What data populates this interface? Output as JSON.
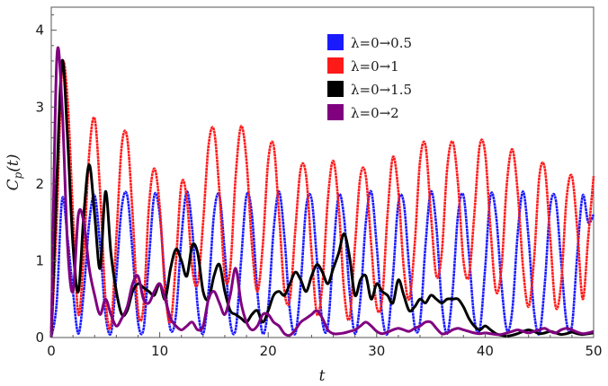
{
  "chart_data": {
    "type": "line",
    "title": "",
    "xlabel": "t",
    "ylabel_main": "C",
    "ylabel_sub": "p",
    "ylabel_arg": "(t)",
    "xlim": [
      0,
      50
    ],
    "ylim": [
      0,
      4.3
    ],
    "x_ticks": [
      "0",
      "10",
      "20",
      "30",
      "40",
      "50"
    ],
    "y_ticks": [
      "0",
      "1",
      "2",
      "3",
      "4"
    ],
    "grid": false,
    "legend_position": "top-right",
    "series": [
      {
        "name": "λ=0→0.5",
        "color": "#1a1aff",
        "x": [
          0,
          0.5,
          1,
          1.5,
          2,
          2.5,
          3,
          3.5,
          4,
          4.5,
          5,
          5.5,
          6,
          6.5,
          7,
          7.5,
          8,
          8.5,
          9,
          9.5,
          10,
          10.5,
          11,
          11.5,
          12,
          12.5,
          13,
          13.5,
          14,
          14.5,
          15,
          15.5,
          16,
          16.5,
          17,
          17.5,
          18,
          18.5,
          19,
          19.5,
          20,
          20.5,
          21,
          21.5,
          22,
          22.5,
          23,
          23.5,
          24,
          24.5,
          25,
          25.5,
          26,
          26.5,
          27,
          27.5,
          28,
          28.5,
          29,
          29.5,
          30,
          30.5,
          31,
          31.5,
          32,
          32.5,
          33,
          33.5,
          34,
          34.5,
          35,
          35.5,
          36,
          36.5,
          37,
          37.5,
          38,
          38.5,
          39,
          39.5,
          40,
          40.5,
          41,
          41.5,
          42,
          42.5,
          43,
          43.5,
          44,
          44.5,
          45,
          45.5,
          46,
          46.5,
          47,
          47.5,
          48,
          48.5,
          49,
          49.5,
          50
        ],
        "y": [
          0,
          0.45,
          1.8,
          1.3,
          0.6,
          0.05,
          0.6,
          1.5,
          1.85,
          1.2,
          0.3,
          0.05,
          0.8,
          1.7,
          1.85,
          1.1,
          0.2,
          0.1,
          1.0,
          1.85,
          1.6,
          0.7,
          0.1,
          0.3,
          1.3,
          1.9,
          1.4,
          0.4,
          0.05,
          0.6,
          1.6,
          1.85,
          1.1,
          0.2,
          0.1,
          1.0,
          1.85,
          1.6,
          0.6,
          0.05,
          0.4,
          1.4,
          1.9,
          1.3,
          0.35,
          0.05,
          0.7,
          1.7,
          1.8,
          1.0,
          0.2,
          0.15,
          1.1,
          1.85,
          1.55,
          0.6,
          0.05,
          0.5,
          1.5,
          1.9,
          1.2,
          0.3,
          0.05,
          0.8,
          1.75,
          1.75,
          0.9,
          0.15,
          0.2,
          1.2,
          1.9,
          1.45,
          0.45,
          0.05,
          0.6,
          1.6,
          1.85,
          1.1,
          0.25,
          0.1,
          0.9,
          1.85,
          1.6,
          0.7,
          0.1,
          0.35,
          1.35,
          1.9,
          1.3,
          0.35,
          0.05,
          0.7,
          1.7,
          1.8,
          1.0,
          0.2,
          0.15,
          1.1,
          1.85,
          1.5,
          1.6
        ]
      },
      {
        "name": "λ=0→1",
        "color": "#ff1a1a",
        "x": [
          0,
          0.5,
          1,
          1.5,
          2,
          2.5,
          3,
          3.5,
          4,
          4.5,
          5,
          5.5,
          6,
          6.5,
          7,
          7.5,
          8,
          8.5,
          9,
          9.5,
          10,
          10.5,
          11,
          11.5,
          12,
          12.5,
          13,
          13.5,
          14,
          14.5,
          15,
          15.5,
          16,
          16.5,
          17,
          17.5,
          18,
          18.5,
          19,
          19.5,
          20,
          20.5,
          21,
          21.5,
          22,
          22.5,
          23,
          23.5,
          24,
          24.5,
          25,
          25.5,
          26,
          26.5,
          27,
          27.5,
          28,
          28.5,
          29,
          29.5,
          30,
          30.5,
          31,
          31.5,
          32,
          32.5,
          33,
          33.5,
          34,
          34.5,
          35,
          35.5,
          36,
          36.5,
          37,
          37.5,
          38,
          38.5,
          39,
          39.5,
          40,
          40.5,
          41,
          41.5,
          42,
          42.5,
          43,
          43.5,
          44,
          44.5,
          45,
          45.5,
          46,
          46.5,
          47,
          47.5,
          48,
          48.5,
          49,
          49.5,
          50
        ],
        "y": [
          0,
          1.5,
          3.5,
          3.1,
          1.6,
          0.3,
          1.1,
          2.4,
          2.85,
          1.9,
          0.5,
          0.15,
          1.3,
          2.5,
          2.6,
          1.6,
          0.35,
          0.4,
          1.7,
          2.2,
          1.7,
          0.6,
          0.2,
          1.0,
          2.0,
          1.8,
          0.9,
          0.7,
          1.5,
          2.5,
          2.7,
          1.9,
          0.8,
          0.9,
          2.1,
          2.75,
          2.3,
          1.2,
          0.6,
          1.2,
          2.3,
          2.5,
          1.6,
          0.6,
          0.5,
          1.4,
          2.2,
          2.1,
          1.1,
          0.3,
          0.7,
          1.8,
          2.3,
          1.7,
          0.6,
          0.25,
          1.2,
          2.1,
          2.1,
          1.2,
          0.4,
          0.5,
          1.6,
          2.35,
          1.9,
          0.9,
          0.5,
          1.2,
          2.3,
          2.5,
          1.6,
          0.8,
          1.1,
          2.2,
          2.55,
          2.0,
          1.0,
          0.8,
          1.6,
          2.5,
          2.4,
          1.4,
          0.6,
          0.9,
          2.0,
          2.45,
          1.9,
          0.9,
          0.4,
          1.0,
          2.1,
          2.2,
          1.3,
          0.4,
          0.7,
          1.8,
          2.1,
          1.4,
          0.5,
          1.3,
          2.1
        ]
      },
      {
        "name": "λ=0→1.5",
        "color": "#000000",
        "x": [
          0,
          0.5,
          1,
          1.5,
          2,
          2.5,
          3,
          3.5,
          4,
          4.5,
          5,
          5.5,
          6,
          6.5,
          7,
          7.5,
          8,
          8.5,
          9,
          9.5,
          10,
          10.5,
          11,
          11.5,
          12,
          12.5,
          13,
          13.5,
          14,
          14.5,
          15,
          15.5,
          16,
          16.5,
          17,
          17.5,
          18,
          18.5,
          19,
          19.5,
          20,
          20.5,
          21,
          21.5,
          22,
          22.5,
          23,
          23.5,
          24,
          24.5,
          25,
          25.5,
          26,
          26.5,
          27,
          27.5,
          28,
          28.5,
          29,
          29.5,
          30,
          30.5,
          31,
          31.5,
          32,
          32.5,
          33,
          33.5,
          34,
          34.5,
          35,
          35.5,
          36,
          36.5,
          37,
          37.5,
          38,
          38.5,
          39,
          39.5,
          40,
          40.5,
          41,
          41.5,
          42,
          42.5,
          43,
          43.5,
          44,
          44.5,
          45,
          45.5,
          46,
          46.5,
          47,
          47.5,
          48,
          48.5,
          49,
          49.5,
          50
        ],
        "y": [
          0,
          2.0,
          3.6,
          2.6,
          1.2,
          0.6,
          1.6,
          2.25,
          1.6,
          0.9,
          1.9,
          1.1,
          0.6,
          0.3,
          0.35,
          0.6,
          0.7,
          0.65,
          0.6,
          0.55,
          0.7,
          0.5,
          0.9,
          1.15,
          1.0,
          0.8,
          1.2,
          1.1,
          0.6,
          0.5,
          0.8,
          0.95,
          0.6,
          0.35,
          0.3,
          0.25,
          0.2,
          0.3,
          0.35,
          0.2,
          0.35,
          0.55,
          0.6,
          0.55,
          0.7,
          0.85,
          0.75,
          0.6,
          0.8,
          0.95,
          0.85,
          0.7,
          0.9,
          1.1,
          1.35,
          1.05,
          0.55,
          0.75,
          0.8,
          0.5,
          0.7,
          0.6,
          0.55,
          0.45,
          0.75,
          0.55,
          0.35,
          0.4,
          0.5,
          0.45,
          0.55,
          0.5,
          0.45,
          0.5,
          0.5,
          0.5,
          0.4,
          0.25,
          0.15,
          0.1,
          0.15,
          0.1,
          0.05,
          0.03,
          0.02,
          0.03,
          0.05,
          0.08,
          0.1,
          0.08,
          0.05,
          0.06,
          0.08,
          0.06,
          0.04,
          0.05,
          0.07,
          0.05,
          0.04,
          0.05,
          0.06
        ]
      },
      {
        "name": "λ=0→2",
        "color": "#800080",
        "x": [
          0,
          0.5,
          1,
          1.5,
          2,
          2.5,
          3,
          3.5,
          4,
          4.5,
          5,
          5.5,
          6,
          6.5,
          7,
          7.5,
          8,
          8.5,
          9,
          9.5,
          10,
          10.5,
          11,
          11.5,
          12,
          12.5,
          13,
          13.5,
          14,
          14.5,
          15,
          15.5,
          16,
          16.5,
          17,
          17.5,
          18,
          18.5,
          19,
          19.5,
          20,
          20.5,
          21,
          21.5,
          22,
          22.5,
          23,
          23.5,
          24,
          24.5,
          25,
          25.5,
          26,
          26.5,
          27,
          27.5,
          28,
          28.5,
          29,
          29.5,
          30,
          30.5,
          31,
          31.5,
          32,
          32.5,
          33,
          33.5,
          34,
          34.5,
          35,
          35.5,
          36,
          36.5,
          37,
          37.5,
          38,
          38.5,
          39,
          39.5,
          40,
          40.5,
          41,
          41.5,
          42,
          42.5,
          43,
          43.5,
          44,
          44.5,
          45,
          45.5,
          46,
          46.5,
          47,
          47.5,
          48,
          48.5,
          49,
          49.5,
          50
        ],
        "y": [
          0,
          3.6,
          3.0,
          1.2,
          0.6,
          1.6,
          1.5,
          0.9,
          0.55,
          0.3,
          0.5,
          0.3,
          0.15,
          0.25,
          0.4,
          0.7,
          0.8,
          0.5,
          0.45,
          0.6,
          0.7,
          0.5,
          0.25,
          0.15,
          0.1,
          0.15,
          0.2,
          0.1,
          0.15,
          0.5,
          0.6,
          0.45,
          0.3,
          0.55,
          0.9,
          0.45,
          0.2,
          0.1,
          0.15,
          0.3,
          0.3,
          0.2,
          0.15,
          0.05,
          0.03,
          0.1,
          0.2,
          0.25,
          0.3,
          0.35,
          0.25,
          0.1,
          0.05,
          0.05,
          0.06,
          0.08,
          0.1,
          0.15,
          0.2,
          0.15,
          0.08,
          0.05,
          0.07,
          0.1,
          0.12,
          0.1,
          0.08,
          0.12,
          0.15,
          0.2,
          0.2,
          0.12,
          0.05,
          0.06,
          0.1,
          0.12,
          0.1,
          0.08,
          0.06,
          0.05,
          0.06,
          0.05,
          0.04,
          0.04,
          0.06,
          0.08,
          0.1,
          0.08,
          0.06,
          0.08,
          0.1,
          0.12,
          0.08,
          0.06,
          0.1,
          0.12,
          0.1,
          0.07,
          0.05,
          0.06,
          0.08
        ]
      }
    ]
  }
}
